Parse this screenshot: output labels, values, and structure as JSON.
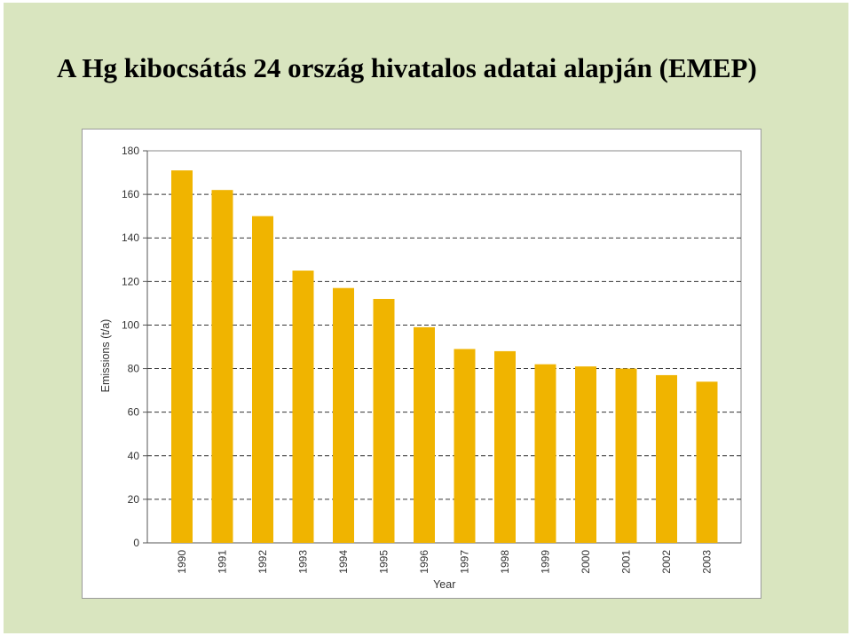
{
  "slide": {
    "title": "A Hg kibocsátás 24 ország hivatalos adatai alapján (EMEP)",
    "background_color": "#d9e5bf"
  },
  "chart_data": {
    "type": "bar",
    "categories": [
      "1990",
      "1991",
      "1992",
      "1993",
      "1994",
      "1995",
      "1996",
      "1997",
      "1998",
      "1999",
      "2000",
      "2001",
      "2002",
      "2003"
    ],
    "values": [
      171,
      162,
      150,
      125,
      117,
      112,
      99,
      89,
      88,
      82,
      81,
      80,
      77,
      74
    ],
    "xlabel": "Year",
    "ylabel": "Emissions (t/a)",
    "ylim": [
      0,
      180
    ],
    "yticks": [
      0,
      20,
      40,
      60,
      80,
      100,
      120,
      140,
      160,
      180
    ],
    "grid": "dashed horizontal",
    "bar_color": "#f0b400",
    "plot_background": "#ffffff"
  }
}
